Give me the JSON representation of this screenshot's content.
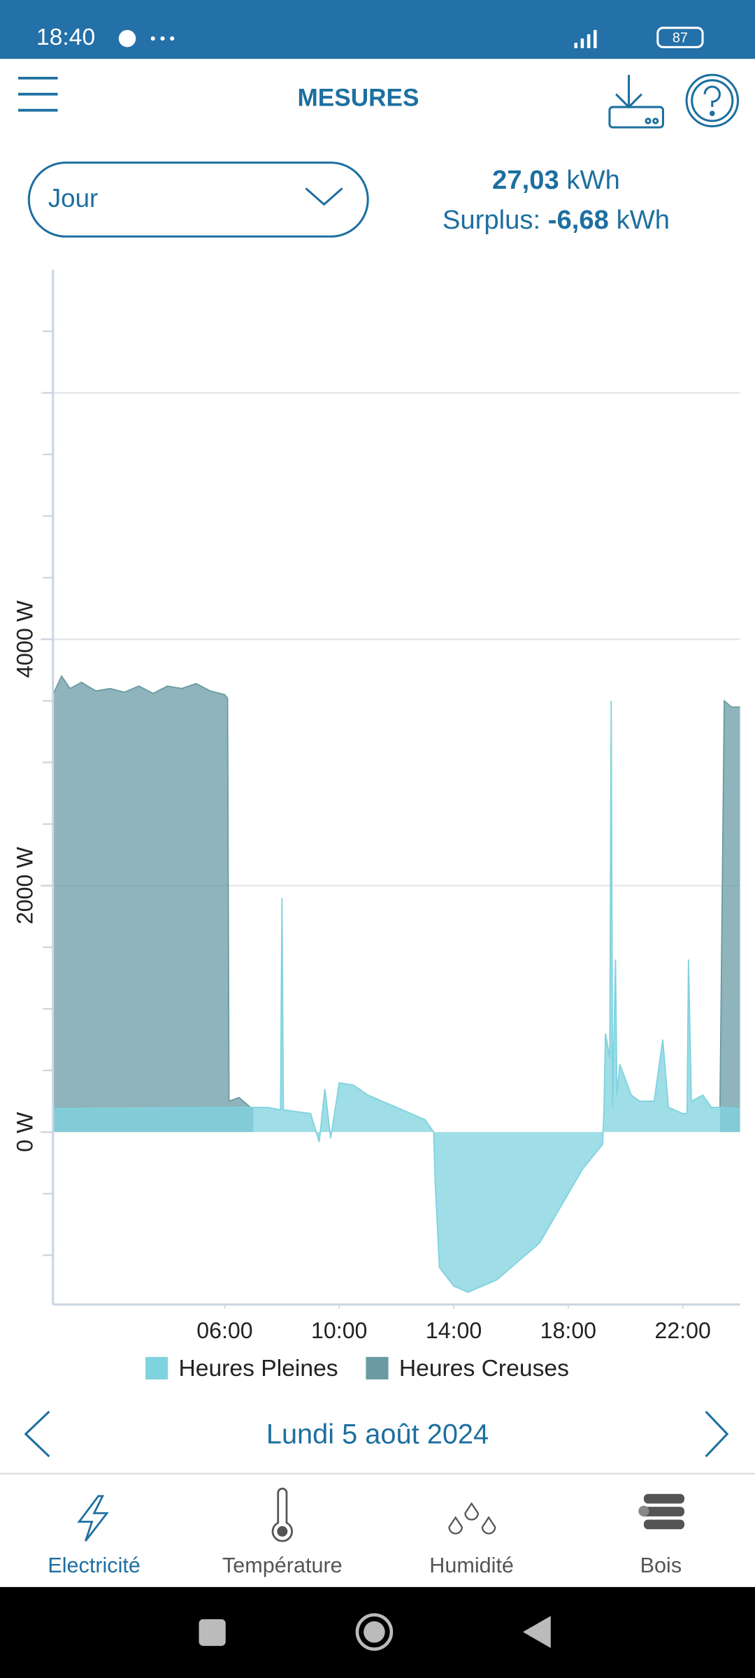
{
  "status_bar": {
    "time": "18:40",
    "battery": "87"
  },
  "header": {
    "title": "MESURES"
  },
  "period_select": {
    "value": "Jour"
  },
  "summary": {
    "total": "27,03",
    "total_unit": "kWh",
    "surplus_label": "Surplus:",
    "surplus": "-6,68",
    "surplus_unit": "kWh"
  },
  "chart_data": {
    "type": "area",
    "xlim": [
      0,
      24
    ],
    "xticks": [
      {
        "value": 6,
        "label": "06:00"
      },
      {
        "value": 10,
        "label": "10:00"
      },
      {
        "value": 14,
        "label": "14:00"
      },
      {
        "value": 18,
        "label": "18:00"
      },
      {
        "value": 22,
        "label": "22:00"
      }
    ],
    "ylim": [
      -1400,
      7000
    ],
    "yticks": [
      {
        "value": 0,
        "label": "0 W"
      },
      {
        "value": 2000,
        "label": "2000 W"
      },
      {
        "value": 4000,
        "label": "4000 W"
      }
    ],
    "grid_lines": [
      2000,
      4000,
      6000
    ],
    "minor_yticks": [
      -1000,
      -500,
      0,
      500,
      1000,
      1500,
      2000,
      2500,
      3000,
      3500,
      4000,
      4500,
      5000,
      5500,
      6000,
      6500
    ],
    "legend": "bottom",
    "series": [
      {
        "name": "Heures Pleines",
        "color": "#7fd3df",
        "x": [
          0,
          7,
          7.5,
          7.95,
          8.0,
          8.05,
          9,
          9.3,
          9.5,
          9.7,
          10,
          10.5,
          11,
          11.5,
          12,
          13,
          13.3,
          13.35,
          13.5,
          14,
          14.5,
          15,
          15.5,
          16,
          16.5,
          17,
          17.5,
          18,
          18.5,
          19.2,
          19.25,
          19.3,
          19.45,
          19.5,
          19.55,
          19.65,
          19.7,
          19.8,
          20.2,
          20.5,
          21,
          21.3,
          21.5,
          22,
          22.15,
          22.2,
          22.3,
          22.7,
          23,
          23.3,
          24
        ],
        "values": [
          190,
          200,
          200,
          180,
          1900,
          180,
          150,
          -80,
          350,
          -50,
          400,
          380,
          300,
          250,
          200,
          100,
          0,
          -400,
          -1100,
          -1250,
          -1300,
          -1250,
          -1200,
          -1100,
          -1000,
          -900,
          -700,
          -500,
          -300,
          -100,
          200,
          800,
          600,
          3500,
          200,
          1400,
          300,
          550,
          300,
          250,
          250,
          750,
          200,
          150,
          150,
          1400,
          250,
          300,
          200,
          200,
          190
        ]
      },
      {
        "name": "Heures Creuses",
        "color": "#6a9ba4",
        "x": [
          0,
          0.3,
          0.6,
          1,
          1.5,
          2,
          2.5,
          3,
          3.5,
          4,
          4.5,
          5,
          5.5,
          6,
          6.1,
          6.15,
          6.5,
          7,
          null,
          23.3,
          23.45,
          23.7,
          24
        ],
        "values": [
          3550,
          3700,
          3600,
          3650,
          3580,
          3600,
          3570,
          3620,
          3560,
          3620,
          3600,
          3640,
          3580,
          3550,
          3520,
          250,
          280,
          180,
          null,
          200,
          3500,
          3450,
          3450
        ]
      }
    ]
  },
  "date_nav": {
    "date": "Lundi 5 août 2024"
  },
  "tabs": [
    {
      "label": "Electricité",
      "active": true
    },
    {
      "label": "Température",
      "active": false
    },
    {
      "label": "Humidité",
      "active": false
    },
    {
      "label": "Bois",
      "active": false
    }
  ]
}
